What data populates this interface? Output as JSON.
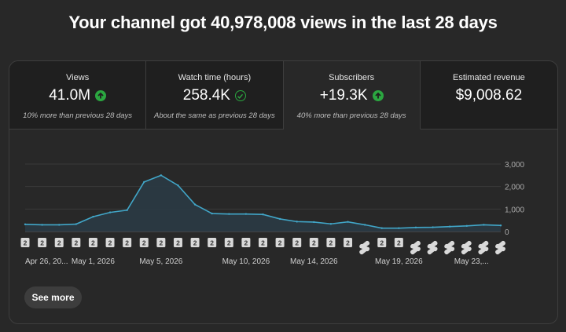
{
  "headline": "Your channel got 40,978,008 views in the last 28 days",
  "tabs": [
    {
      "label": "Views",
      "value": "41.0M",
      "indicator": "arrow-up",
      "sub": "10% more than previous 28 days"
    },
    {
      "label": "Watch time (hours)",
      "value": "258.4K",
      "indicator": "check",
      "sub": "About the same as previous 28 days"
    },
    {
      "label": "Subscribers",
      "value": "+19.3K",
      "indicator": "arrow-up",
      "sub": "40% more than previous 28 days"
    },
    {
      "label": "Estimated revenue",
      "value": "$9,008.62",
      "indicator": "",
      "sub": ""
    }
  ],
  "active_tab": 2,
  "colors": {
    "accent_line": "#41a6c8",
    "area_fill": "#2a3a44",
    "up_badge": "#2ba640"
  },
  "chart_data": {
    "type": "area",
    "y_ticks": [
      "3,000",
      "2,000",
      "1,000",
      "0"
    ],
    "ylim": [
      0,
      3000
    ],
    "x_tick_labels": [
      "Apr 26, 20...",
      "May 1, 2026",
      "May 5, 2026",
      "May 10, 2026",
      "May 14, 2026",
      "May 19, 2026",
      "May 23,..."
    ],
    "values": [
      320,
      300,
      300,
      330,
      660,
      850,
      950,
      2200,
      2500,
      2050,
      1200,
      800,
      780,
      780,
      760,
      560,
      440,
      420,
      340,
      430,
      300,
      150,
      150,
      180,
      190,
      220,
      250,
      300,
      270
    ],
    "markers": [
      "2",
      "2",
      "2",
      "2",
      "2",
      "2",
      "2",
      "2",
      "2",
      "2",
      "2",
      "2",
      "2",
      "2",
      "2",
      "2",
      "2",
      "2",
      "2",
      "2",
      "shorts",
      "2",
      "2",
      "shorts",
      "shorts",
      "shorts",
      "shorts",
      "shorts",
      "shorts"
    ],
    "grid": true
  },
  "see_more_label": "See more"
}
